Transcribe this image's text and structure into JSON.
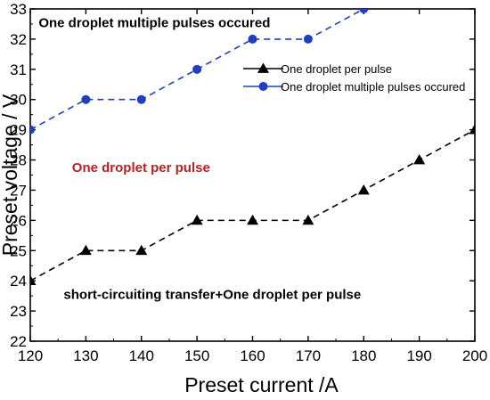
{
  "chart_data": {
    "type": "line",
    "xlabel": "Preset  current /A",
    "ylabel": "Preset voltage / V",
    "xlim": [
      120,
      200
    ],
    "ylim": [
      22,
      33
    ],
    "x_ticks": [
      120,
      130,
      140,
      150,
      160,
      170,
      180,
      190,
      200
    ],
    "y_ticks": [
      22,
      23,
      24,
      25,
      26,
      27,
      28,
      29,
      30,
      31,
      32,
      33
    ],
    "grid": false,
    "legend_position": "top-right",
    "series": [
      {
        "name": "One droplet per pulse",
        "color": "#000000",
        "marker": "triangle",
        "line_style": "dashed",
        "points": [
          [
            120,
            24
          ],
          [
            130,
            25
          ],
          [
            140,
            25
          ],
          [
            150,
            26
          ],
          [
            160,
            26
          ],
          [
            170,
            26
          ],
          [
            180,
            27
          ],
          [
            190,
            28
          ],
          [
            200,
            29
          ]
        ]
      },
      {
        "name": "One droplet multiple pulses occured",
        "color": "#1f3fbf",
        "marker": "circle",
        "line_style": "dashed",
        "points": [
          [
            120,
            29
          ],
          [
            130,
            30
          ],
          [
            140,
            30
          ],
          [
            150,
            31
          ],
          [
            160,
            32
          ],
          [
            170,
            32
          ],
          [
            180,
            33
          ]
        ]
      }
    ],
    "annotations": [
      {
        "text": "One droplet multiple pulses occured",
        "x": 121.5,
        "y": 32.4,
        "color": "#000000",
        "weight": "bold"
      },
      {
        "text": "One droplet per pulse",
        "x": 127.5,
        "y": 27.6,
        "color": "#b22222",
        "weight": "bold"
      },
      {
        "text": "short-circuiting transfer+One droplet per pulse",
        "x": 126,
        "y": 23.4,
        "color": "#000000",
        "weight": "bold"
      }
    ]
  }
}
